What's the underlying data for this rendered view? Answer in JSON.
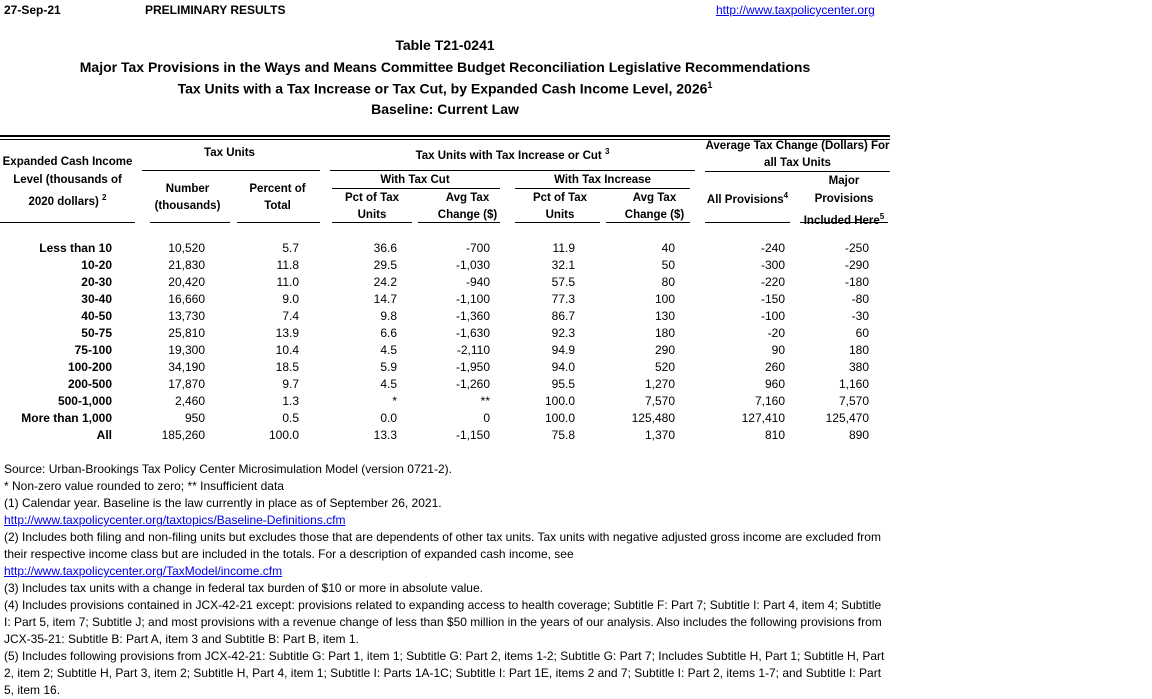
{
  "header": {
    "date": "27-Sep-21",
    "status": "PRELIMINARY RESULTS",
    "link": "http://www.taxpolicycenter.org"
  },
  "titles": [
    "Table T21-0241",
    "Major Tax Provisions in the Ways and Means Committee Budget Reconciliation Legislative Recommendations",
    "Tax Units with a Tax Increase or Tax Cut, by Expanded Cash Income Level, 2026",
    "Baseline: Current Law"
  ],
  "title_sup": "1",
  "columns": {
    "income_l1": "Expanded Cash Income",
    "income_l2": "Level (thousands of",
    "income_l3": "2020 dollars)",
    "income_sup": "2",
    "tax_units": "Tax Units",
    "number_l1": "Number",
    "number_l2": "(thousands)",
    "percent_l1": "Percent of",
    "percent_l2": "Total",
    "incr_cut": "Tax Units with Tax Increase or Cut",
    "incr_cut_sup": "3",
    "with_cut": "With Tax Cut",
    "with_incr": "With Tax Increase",
    "pct_l1": "Pct of Tax",
    "pct_l2": "Units",
    "avg_l1": "Avg Tax",
    "avg_l2": "Change ($)",
    "avg_change_l1": "Average Tax Change (Dollars) For",
    "avg_change_l2": "all Tax Units",
    "all_prov": "All Provisions",
    "all_prov_sup": "4",
    "major_l1": "Major",
    "major_l2": "Provisions",
    "major_l3": "Included Here",
    "major_sup": "5"
  },
  "rows": [
    [
      "Less than 10",
      "10,520",
      "5.7",
      "36.6",
      "-700",
      "11.9",
      "40",
      "-240",
      "-250"
    ],
    [
      "10-20",
      "21,830",
      "11.8",
      "29.5",
      "-1,030",
      "32.1",
      "50",
      "-300",
      "-290"
    ],
    [
      "20-30",
      "20,420",
      "11.0",
      "24.2",
      "-940",
      "57.5",
      "80",
      "-220",
      "-180"
    ],
    [
      "30-40",
      "16,660",
      "9.0",
      "14.7",
      "-1,100",
      "77.3",
      "100",
      "-150",
      "-80"
    ],
    [
      "40-50",
      "13,730",
      "7.4",
      "9.8",
      "-1,360",
      "86.7",
      "130",
      "-100",
      "-30"
    ],
    [
      "50-75",
      "25,810",
      "13.9",
      "6.6",
      "-1,630",
      "92.3",
      "180",
      "-20",
      "60"
    ],
    [
      "75-100",
      "19,300",
      "10.4",
      "4.5",
      "-2,110",
      "94.9",
      "290",
      "90",
      "180"
    ],
    [
      "100-200",
      "34,190",
      "18.5",
      "5.9",
      "-1,950",
      "94.0",
      "520",
      "260",
      "380"
    ],
    [
      "200-500",
      "17,870",
      "9.7",
      "4.5",
      "-1,260",
      "95.5",
      "1,270",
      "960",
      "1,160"
    ],
    [
      "500-1,000",
      "2,460",
      "1.3",
      "*",
      "**",
      "100.0",
      "7,570",
      "7,160",
      "7,570"
    ],
    [
      "More than 1,000",
      "950",
      "0.5",
      "0.0",
      "0",
      "100.0",
      "125,480",
      "127,410",
      "125,470"
    ],
    [
      "All",
      "185,260",
      "100.0",
      "13.3",
      "-1,150",
      "75.8",
      "1,370",
      "810",
      "890"
    ]
  ],
  "footnotes": {
    "source": "Source: Urban-Brookings Tax Policy Center Microsimulation Model (version 0721-2).",
    "stars": "* Non-zero value rounded to zero; ** Insufficient data",
    "n1": "(1) Calendar year. Baseline is the law currently in place as of September 26, 2021.",
    "n1_link": "http://www.taxpolicycenter.org/taxtopics/Baseline-Definitions.cfm",
    "n2": "(2) Includes both filing and non-filing units but excludes those that are dependents of other tax units. Tax units with negative adjusted gross income are excluded from their respective income class but are included in the totals. For a description of expanded cash income, see",
    "n2_link": "http://www.taxpolicycenter.org/TaxModel/income.cfm",
    "n3": "(3) Includes tax units with a change in federal tax burden of $10 or more in absolute value.",
    "n4": "(4) Includes provisions contained in JCX-42-21 except: provisions related to expanding access to health coverage; Subtitle F: Part 7; Subtitle I: Part 4, item 4; Subtitle I: Part 5, item 7; Subtitle J; and most provisions with a revenue change of less than $50 million in the years of our analysis. Also includes the following provisions from JCX-35-21: Subtitle B: Part A, item 3 and Subtitle B: Part B, item 1.",
    "n5": "(5) Includes following provisions from JCX-42-21: Subtitle G: Part 1, item 1;  Subtitle G: Part 2, items 1-2; Subtitle G: Part 7; Includes Subtitle H, Part 1; Subtitle H, Part 2, item 2; Subtitle H, Part 3, item 2; Subtitle H, Part 4, item 1; Subtitle I: Parts 1A-1C; Subtitle I: Part 1E, items 2 and 7; Subtitle I: Part 2, items 1-7; and Subtitle I: Part 5, item 16."
  }
}
